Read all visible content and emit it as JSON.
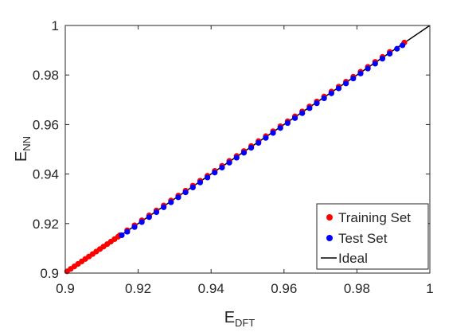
{
  "chart_data": {
    "type": "scatter",
    "title": "",
    "xlabel": "E",
    "xlabel_subscript": "DFT",
    "ylabel": "E",
    "ylabel_subscript": "NN",
    "xlim": [
      0.9,
      1.0
    ],
    "ylim": [
      0.9,
      1.0
    ],
    "xticks": [
      0.9,
      0.92,
      0.94,
      0.96,
      0.98,
      1.0
    ],
    "yticks": [
      0.9,
      0.92,
      0.94,
      0.96,
      0.98,
      1.0
    ],
    "xtick_labels": [
      "0.9",
      "0.92",
      "0.94",
      "0.96",
      "0.98",
      "1"
    ],
    "ytick_labels": [
      "0.9",
      "0.92",
      "0.94",
      "0.96",
      "0.98",
      "1"
    ],
    "grid": false,
    "legend_position": "bottom-right",
    "series": [
      {
        "name": "Training Set",
        "color": "#ff0000",
        "marker": "dot",
        "x": [
          0.9005,
          0.9015,
          0.9025,
          0.9035,
          0.9045,
          0.9055,
          0.9065,
          0.9075,
          0.9085,
          0.9095,
          0.9105,
          0.9115,
          0.9125,
          0.9135,
          0.9145,
          0.915,
          0.917,
          0.919,
          0.921,
          0.923,
          0.925,
          0.927,
          0.929,
          0.931,
          0.933,
          0.935,
          0.937,
          0.939,
          0.941,
          0.943,
          0.945,
          0.947,
          0.949,
          0.951,
          0.953,
          0.955,
          0.957,
          0.959,
          0.961,
          0.963,
          0.965,
          0.967,
          0.969,
          0.971,
          0.973,
          0.975,
          0.977,
          0.979,
          0.981,
          0.983,
          0.985,
          0.987,
          0.989,
          0.993
        ],
        "y": [
          0.9007,
          0.9017,
          0.9027,
          0.9037,
          0.9047,
          0.9057,
          0.9067,
          0.9077,
          0.9087,
          0.9097,
          0.9107,
          0.9117,
          0.9127,
          0.9137,
          0.9147,
          0.9153,
          0.9173,
          0.9193,
          0.9213,
          0.9233,
          0.9253,
          0.9273,
          0.9293,
          0.9313,
          0.9333,
          0.9353,
          0.9373,
          0.9393,
          0.9413,
          0.9433,
          0.9453,
          0.9473,
          0.9493,
          0.9513,
          0.9533,
          0.9553,
          0.9573,
          0.9593,
          0.9613,
          0.9633,
          0.9653,
          0.9673,
          0.9693,
          0.9713,
          0.9733,
          0.9753,
          0.9773,
          0.9793,
          0.9813,
          0.9833,
          0.9853,
          0.9873,
          0.9893,
          0.9931
        ]
      },
      {
        "name": "Test Set",
        "color": "#0000ff",
        "marker": "dot",
        "x": [
          0.9155,
          0.917,
          0.919,
          0.921,
          0.923,
          0.925,
          0.927,
          0.929,
          0.931,
          0.933,
          0.935,
          0.937,
          0.939,
          0.941,
          0.943,
          0.945,
          0.947,
          0.949,
          0.951,
          0.953,
          0.955,
          0.957,
          0.959,
          0.961,
          0.963,
          0.965,
          0.967,
          0.969,
          0.971,
          0.973,
          0.975,
          0.977,
          0.979,
          0.981,
          0.983,
          0.985,
          0.987,
          0.989,
          0.991,
          0.9925
        ],
        "y": [
          0.9153,
          0.9167,
          0.9186,
          0.9206,
          0.9226,
          0.9246,
          0.9266,
          0.9286,
          0.9306,
          0.9326,
          0.9346,
          0.9366,
          0.9386,
          0.9406,
          0.9426,
          0.9446,
          0.9466,
          0.9486,
          0.9506,
          0.9526,
          0.9546,
          0.9566,
          0.9586,
          0.9606,
          0.9626,
          0.9646,
          0.9666,
          0.9686,
          0.9706,
          0.9726,
          0.9746,
          0.9766,
          0.9786,
          0.9806,
          0.9826,
          0.9846,
          0.9866,
          0.9886,
          0.9906,
          0.992
        ]
      },
      {
        "name": "Ideal",
        "color": "#000000",
        "marker": "line",
        "x": [
          0.9,
          1.0
        ],
        "y": [
          0.9,
          1.0
        ]
      }
    ]
  }
}
